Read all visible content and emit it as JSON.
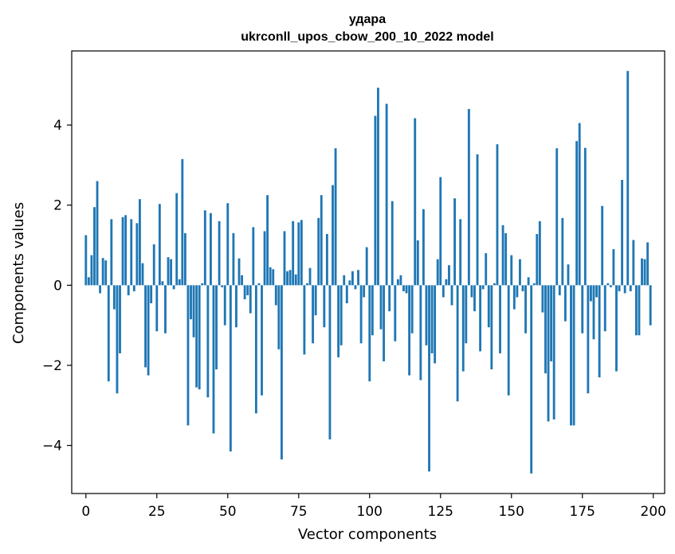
{
  "chart_data": {
    "type": "bar",
    "title_line1": "удара",
    "title_line2": "ukrconll_upos_cbow_200_10_2022 model",
    "xlabel": "Vector components",
    "ylabel": "Components values",
    "xlim": [
      -5,
      204
    ],
    "ylim": [
      -5.2,
      5.85
    ],
    "x_ticks": [
      0,
      25,
      50,
      75,
      100,
      125,
      150,
      175,
      200
    ],
    "y_ticks": [
      -4,
      -2,
      0,
      2,
      4
    ],
    "x_tick_labels": [
      "0",
      "25",
      "50",
      "75",
      "100",
      "125",
      "150",
      "175",
      "200"
    ],
    "y_tick_labels": [
      "−4",
      "−2",
      "0",
      "2",
      "4"
    ],
    "grid": false,
    "bar_color": "#1f77b4",
    "values": [
      1.25,
      0.2,
      0.75,
      1.95,
      2.6,
      -0.2,
      0.68,
      0.62,
      -2.4,
      1.65,
      -0.6,
      -2.7,
      -1.7,
      1.7,
      1.75,
      -0.25,
      1.65,
      -0.15,
      1.55,
      2.15,
      0.55,
      -2.05,
      -2.25,
      -0.45,
      1.02,
      -1.15,
      2.03,
      0.1,
      -1.2,
      0.7,
      0.65,
      -0.1,
      2.3,
      0.15,
      3.15,
      1.3,
      -3.5,
      -0.85,
      -1.3,
      -2.55,
      -2.6,
      0.05,
      1.87,
      -2.8,
      1.8,
      -3.7,
      -2.1,
      1.6,
      -0.05,
      -1.0,
      2.05,
      -4.15,
      1.3,
      -1.05,
      0.67,
      0.25,
      -0.35,
      -0.25,
      -0.7,
      1.45,
      -3.2,
      0.05,
      -2.75,
      1.35,
      2.25,
      0.45,
      0.4,
      -0.5,
      -1.6,
      -4.35,
      1.35,
      0.35,
      0.38,
      1.6,
      0.27,
      1.57,
      1.63,
      -1.73,
      0.05,
      0.43,
      -1.45,
      -0.75,
      1.68,
      2.25,
      -1.05,
      1.28,
      -3.85,
      2.5,
      3.42,
      -1.8,
      -1.5,
      0.25,
      -0.45,
      0.12,
      0.35,
      -0.1,
      0.38,
      -1.45,
      -0.3,
      0.95,
      -2.4,
      -1.25,
      4.23,
      4.93,
      -1.1,
      -1.9,
      4.53,
      -0.65,
      2.1,
      -1.4,
      0.15,
      0.25,
      -0.15,
      -0.2,
      -2.25,
      -1.2,
      4.17,
      1.12,
      -2.37,
      1.9,
      -1.5,
      -4.65,
      -1.7,
      -1.95,
      0.65,
      2.7,
      -0.3,
      0.15,
      0.5,
      -0.5,
      2.17,
      -2.9,
      1.65,
      -2.15,
      -1.45,
      4.4,
      -0.3,
      -0.65,
      3.27,
      -1.65,
      -0.1,
      0.8,
      -1.05,
      -2.1,
      0.05,
      3.52,
      -1.7,
      1.5,
      1.3,
      -2.75,
      0.75,
      -0.6,
      -0.3,
      0.65,
      -0.15,
      -1.2,
      0.2,
      -4.7,
      0.05,
      1.28,
      1.6,
      -0.68,
      -2.2,
      -3.4,
      -1.9,
      -3.35,
      3.42,
      -0.25,
      1.68,
      -0.9,
      0.52,
      -3.5,
      -3.5,
      3.6,
      4.05,
      -1.2,
      3.43,
      -2.7,
      -0.4,
      -1.35,
      -0.3,
      -2.3,
      1.98,
      -1.15,
      0.05,
      -0.05,
      0.9,
      -2.15,
      -0.15,
      2.63,
      -0.2,
      5.35,
      -0.15,
      1.13,
      -1.25,
      -1.25,
      0.67,
      0.65,
      1.07,
      -1.0
    ]
  }
}
